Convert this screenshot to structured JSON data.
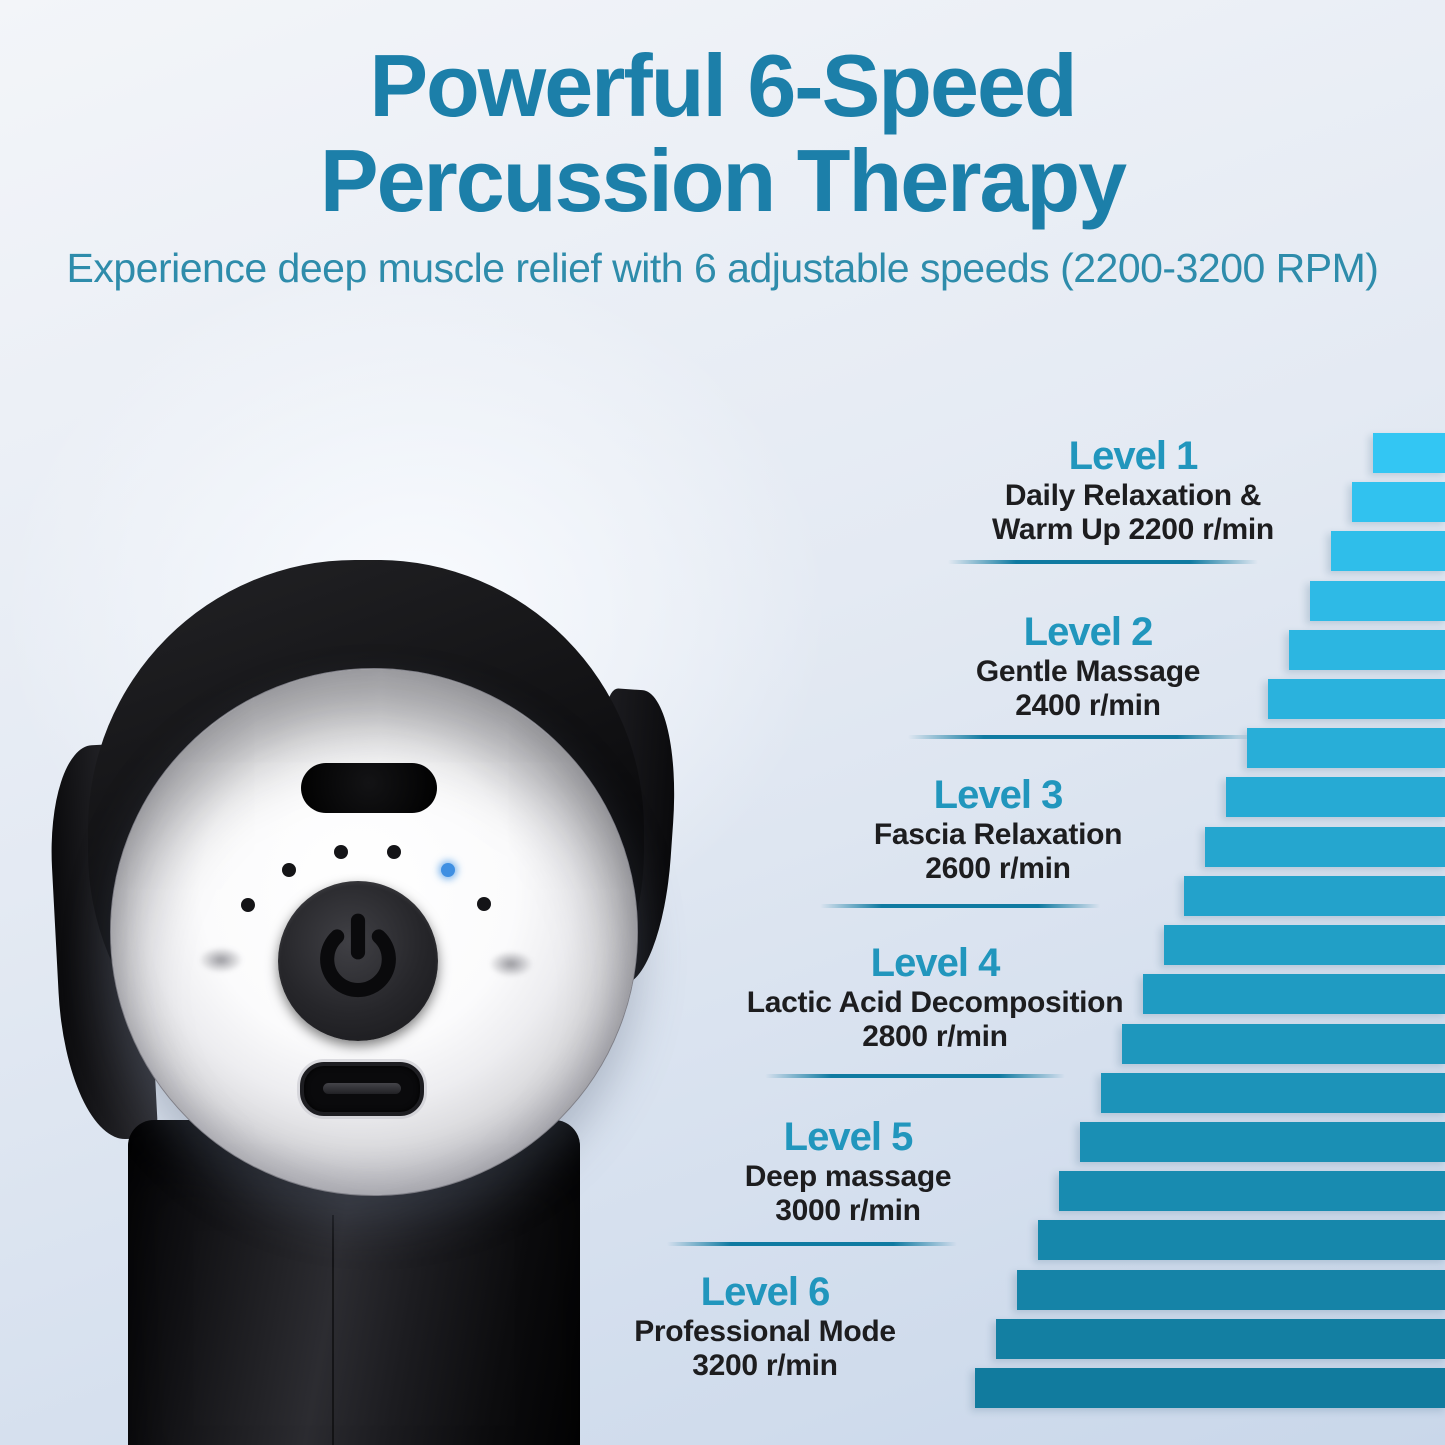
{
  "title": {
    "line1": "Powerful 6-Speed",
    "line2": "Percussion Therapy"
  },
  "subtitle": "Experience deep muscle relief with 6 adjustable speeds (2200-3200 RPM)",
  "levels": [
    {
      "heading": "Level 1",
      "lines": [
        "Daily Relaxation &",
        "Warm Up 2200 r/min"
      ],
      "rpm": 2200
    },
    {
      "heading": "Level 2",
      "lines": [
        "Gentle Massage",
        "2400 r/min"
      ],
      "rpm": 2400
    },
    {
      "heading": "Level 3",
      "lines": [
        "Fascia Relaxation",
        "2600 r/min"
      ],
      "rpm": 2600
    },
    {
      "heading": "Level 4",
      "lines": [
        "Lactic Acid Decomposition",
        "2800 r/min"
      ],
      "rpm": 2800
    },
    {
      "heading": "Level 5",
      "lines": [
        "Deep massage",
        "3000 r/min"
      ],
      "rpm": 3000
    },
    {
      "heading": "Level 6",
      "lines": [
        "Professional Mode",
        "3200 r/min"
      ],
      "rpm": 3200
    }
  ],
  "device": {
    "description": "Black massage gun with chrome circular faceplate, power button, LED speed indicators (one lit blue) and USB-C charging port",
    "led_count": 6,
    "lit_led_index": 4,
    "port": "USB-C"
  },
  "chart_data": {
    "type": "bar",
    "title": "6-speed staircase",
    "categories": [
      "Level 1",
      "Level 2",
      "Level 3",
      "Level 4",
      "Level 5",
      "Level 6"
    ],
    "values": [
      2200,
      2400,
      2600,
      2800,
      3000,
      3200
    ],
    "ylabel": "r/min",
    "ylim": [
      2200,
      3200
    ],
    "legend": false,
    "grid": false,
    "staircase": {
      "steps": 20,
      "top_color": "#33c6f3",
      "bottom_color": "#117b9e"
    }
  },
  "colors": {
    "title": "#1c7fa9",
    "subtitle": "#2e8cab",
    "heading": "#2196bd",
    "body_text": "#1d1d1f",
    "divider": "#0f7aa1",
    "bar_top": "#33c6f3",
    "bar_bottom": "#117b9e",
    "led_blue": "#3f8fe2",
    "bg_top": "#f3f5f9",
    "bg_mid": "#e4eaf3",
    "bg_bottom": "#c9d7ea"
  }
}
